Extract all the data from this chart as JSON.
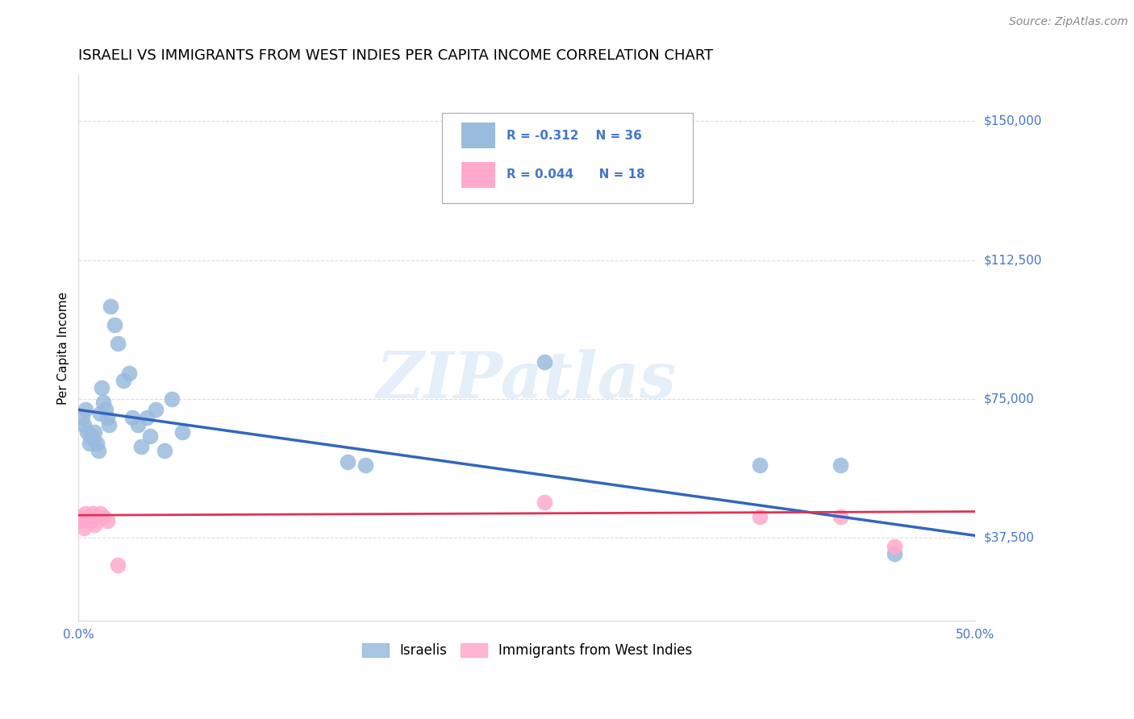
{
  "title": "ISRAELI VS IMMIGRANTS FROM WEST INDIES PER CAPITA INCOME CORRELATION CHART",
  "source": "Source: ZipAtlas.com",
  "ylabel": "Per Capita Income",
  "xlim": [
    0.0,
    0.5
  ],
  "ylim": [
    15000,
    162500
  ],
  "ytick_vals": [
    37500,
    75000,
    112500,
    150000
  ],
  "ytick_labels": [
    "$37,500",
    "$75,000",
    "$112,500",
    "$150,000"
  ],
  "xtick_vals": [
    0.0,
    0.1,
    0.2,
    0.3,
    0.4,
    0.5
  ],
  "xtick_labels": [
    "0.0%",
    "",
    "",
    "",
    "",
    "50.0%"
  ],
  "label_israelis": "Israelis",
  "label_west_indies": "Immigrants from West Indies",
  "watermark": "ZIPatlas",
  "blue_dot_color": "#99BBDD",
  "pink_dot_color": "#FFAACC",
  "line_blue_color": "#3366BB",
  "line_pink_color": "#DD3355",
  "axis_label_color": "#4477CC",
  "grid_color": "#DDDDDD",
  "title_fontsize": 13,
  "source_fontsize": 10,
  "ylabel_fontsize": 11,
  "tick_fontsize": 11,
  "legend_fontsize": 11,
  "israelis_x": [
    0.002,
    0.003,
    0.004,
    0.005,
    0.006,
    0.007,
    0.008,
    0.009,
    0.01,
    0.011,
    0.012,
    0.013,
    0.014,
    0.015,
    0.016,
    0.017,
    0.018,
    0.02,
    0.022,
    0.025,
    0.028,
    0.03,
    0.033,
    0.035,
    0.038,
    0.04,
    0.043,
    0.048,
    0.052,
    0.058,
    0.15,
    0.16,
    0.26,
    0.38,
    0.425,
    0.455
  ],
  "israelis_y": [
    70000,
    68000,
    72000,
    66000,
    63000,
    65000,
    64000,
    66000,
    63000,
    61000,
    71000,
    78000,
    74000,
    72000,
    70000,
    68000,
    100000,
    95000,
    90000,
    80000,
    82000,
    70000,
    68000,
    62000,
    70000,
    65000,
    72000,
    61000,
    75000,
    66000,
    58000,
    57000,
    85000,
    57000,
    57000,
    33000
  ],
  "west_indies_x": [
    0.001,
    0.002,
    0.003,
    0.004,
    0.005,
    0.006,
    0.007,
    0.008,
    0.009,
    0.01,
    0.012,
    0.014,
    0.016,
    0.022,
    0.26,
    0.38,
    0.425,
    0.455
  ],
  "west_indies_y": [
    43000,
    42000,
    40000,
    44000,
    43000,
    42000,
    42000,
    44000,
    41000,
    43000,
    44000,
    43000,
    42000,
    30000,
    47000,
    43000,
    43000,
    35000
  ]
}
